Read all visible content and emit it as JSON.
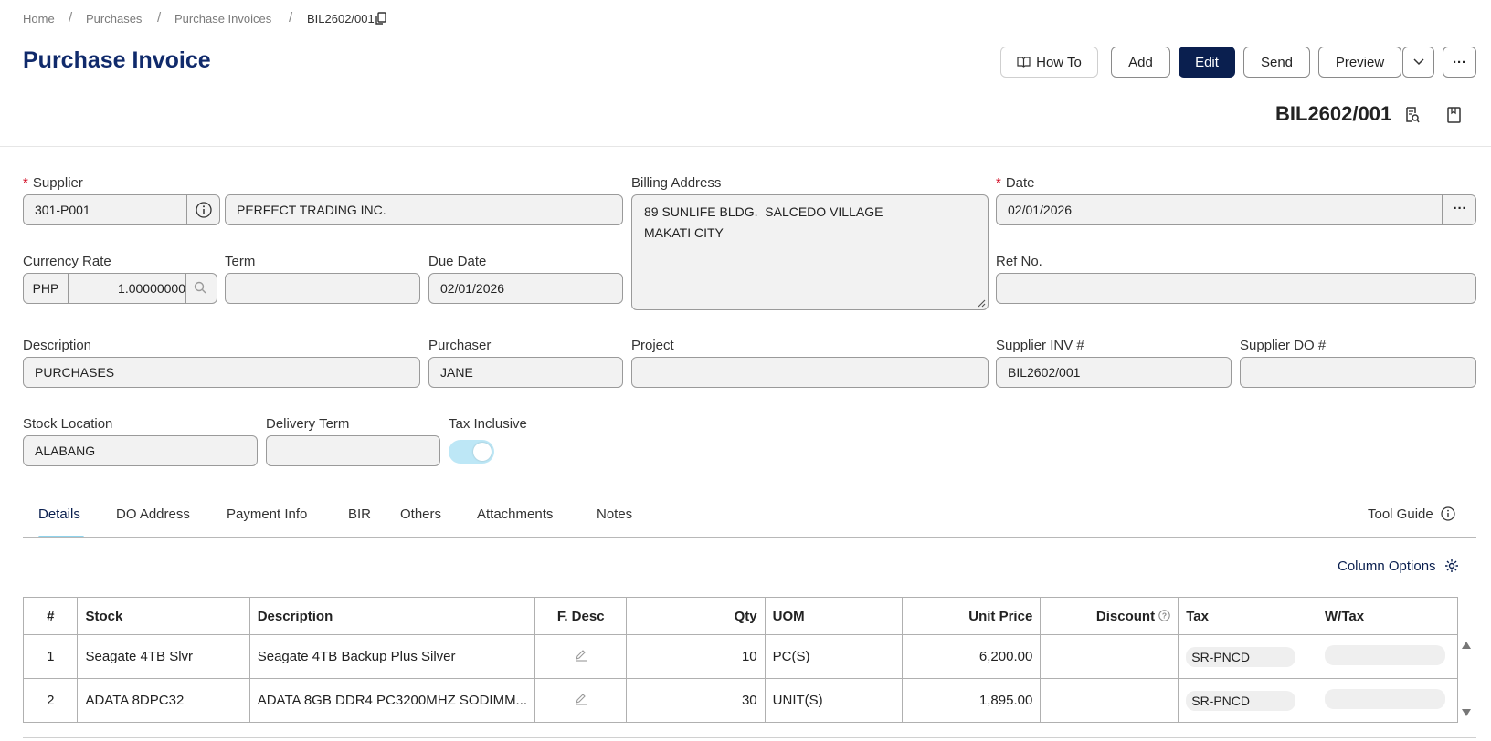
{
  "breadcrumb": {
    "home": "Home",
    "purchases": "Purchases",
    "invoices": "Purchase Invoices",
    "current": "BIL2602/001"
  },
  "page_title": "Purchase Invoice",
  "toolbar": {
    "how_to": "How To",
    "add": "Add",
    "edit": "Edit",
    "send": "Send",
    "preview": "Preview",
    "more": "···"
  },
  "doc_number": "BIL2602/001",
  "form": {
    "supplier_label": "Supplier",
    "supplier_code": "301-P001",
    "supplier_name": "PERFECT TRADING INC.",
    "billing_label": "Billing Address",
    "billing_line1": "89 SUNLIFE BLDG.  SALCEDO VILLAGE",
    "billing_line2": "MAKATI CITY",
    "date_label": "Date",
    "date_value": "02/01/2026",
    "date_more": "···",
    "currency_label": "Currency Rate",
    "currency_code": "PHP",
    "currency_rate": "1.00000000",
    "term_label": "Term",
    "term_value": "",
    "due_label": "Due Date",
    "due_value": "02/01/2026",
    "ref_label": "Ref No.",
    "ref_value": "",
    "desc_label": "Description",
    "desc_value": "PURCHASES",
    "purchaser_label": "Purchaser",
    "purchaser_value": "JANE",
    "project_label": "Project",
    "project_value": "",
    "supinv_label": "Supplier INV #",
    "supinv_value": "BIL2602/001",
    "supdo_label": "Supplier DO #",
    "supdo_value": "",
    "stockloc_label": "Stock Location",
    "stockloc_value": "ALABANG",
    "delterm_label": "Delivery Term",
    "delterm_value": "",
    "taxinc_label": "Tax Inclusive"
  },
  "tabs": [
    "Details",
    "DO Address",
    "Payment Info",
    "BIR",
    "Others",
    "Attachments",
    "Notes"
  ],
  "tool_guide": "Tool Guide",
  "column_options": "Column Options",
  "table": {
    "headers": [
      "#",
      "Stock",
      "Description",
      "F. Desc",
      "Qty",
      "UOM",
      "Unit Price",
      "Discount",
      "Tax",
      "W/Tax"
    ],
    "rows": [
      {
        "no": "1",
        "stock": "Seagate 4TB Slvr",
        "description": "Seagate 4TB Backup Plus Silver",
        "qty": "10",
        "uom": "PC(S)",
        "unit_price": "6,200.00",
        "discount": "",
        "tax": "SR-PNCD",
        "wtax": ""
      },
      {
        "no": "2",
        "stock": "ADATA 8DPC32",
        "description": "ADATA 8GB DDR4 PC3200MHZ SODIMM...",
        "qty": "30",
        "uom": "UNIT(S)",
        "unit_price": "1,895.00",
        "discount": "",
        "tax": "SR-PNCD",
        "wtax": ""
      }
    ]
  },
  "colors": {
    "accent": "#0a1f4f",
    "title": "#102a6b",
    "toggle": "#bde7f6",
    "tab_indicator": "#8ed3ec"
  }
}
